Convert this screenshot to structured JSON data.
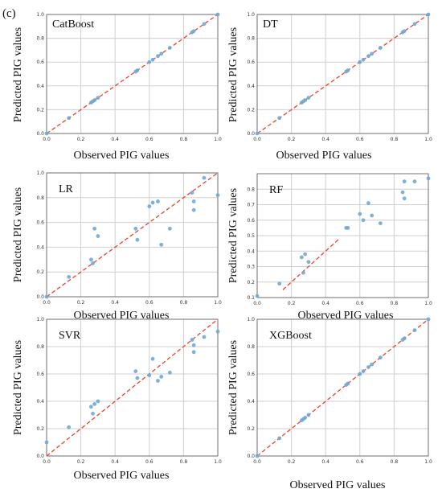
{
  "figure": {
    "panel_label": "(c)"
  },
  "chart_data": [
    {
      "type": "scatter",
      "title": "CatBoost",
      "xlabel": "Observed PIG values",
      "ylabel": "Predicted PIG values",
      "xlim": [
        0,
        1
      ],
      "ylim": [
        0,
        1
      ],
      "xticks": [
        "0.0",
        "0.2",
        "0.4",
        "0.6",
        "0.8",
        "1.0"
      ],
      "yticks": [
        "0.0",
        "0.2",
        "0.4",
        "0.6",
        "0.8",
        "1.0"
      ],
      "grid": true,
      "reference_line": {
        "style": "dashed",
        "color": "#e8432b",
        "from": [
          0,
          0
        ],
        "to": [
          1,
          1
        ]
      },
      "point_color": "#6fa8d4",
      "points": [
        [
          0.0,
          0.0
        ],
        [
          0.13,
          0.13
        ],
        [
          0.26,
          0.26
        ],
        [
          0.27,
          0.27
        ],
        [
          0.28,
          0.28
        ],
        [
          0.3,
          0.3
        ],
        [
          0.52,
          0.52
        ],
        [
          0.53,
          0.53
        ],
        [
          0.6,
          0.6
        ],
        [
          0.62,
          0.62
        ],
        [
          0.65,
          0.65
        ],
        [
          0.67,
          0.67
        ],
        [
          0.72,
          0.72
        ],
        [
          0.85,
          0.85
        ],
        [
          0.86,
          0.86
        ],
        [
          0.92,
          0.92
        ],
        [
          1.0,
          1.0
        ]
      ]
    },
    {
      "type": "scatter",
      "title": "DT",
      "xlabel": "Observed PIG values",
      "ylabel": "Predicted PIG values",
      "xlim": [
        0,
        1
      ],
      "ylim": [
        0,
        1
      ],
      "xticks": [
        "0.0",
        "0.2",
        "0.4",
        "0.6",
        "0.8",
        "1.0"
      ],
      "yticks": [
        "0.0",
        "0.2",
        "0.4",
        "0.6",
        "0.8",
        "1.0"
      ],
      "grid": true,
      "reference_line": {
        "style": "dashed",
        "color": "#e8432b",
        "from": [
          0,
          0
        ],
        "to": [
          1,
          1
        ]
      },
      "point_color": "#6fa8d4",
      "points": [
        [
          0.0,
          0.0
        ],
        [
          0.13,
          0.13
        ],
        [
          0.26,
          0.26
        ],
        [
          0.27,
          0.27
        ],
        [
          0.28,
          0.28
        ],
        [
          0.3,
          0.3
        ],
        [
          0.52,
          0.52
        ],
        [
          0.53,
          0.53
        ],
        [
          0.6,
          0.6
        ],
        [
          0.62,
          0.62
        ],
        [
          0.65,
          0.65
        ],
        [
          0.67,
          0.67
        ],
        [
          0.72,
          0.72
        ],
        [
          0.85,
          0.85
        ],
        [
          0.86,
          0.86
        ],
        [
          0.92,
          0.92
        ],
        [
          1.0,
          1.0
        ]
      ]
    },
    {
      "type": "scatter",
      "title": "LR",
      "xlabel": "Observed PIG values",
      "ylabel": "Predicted PIG values",
      "xlim": [
        0,
        1
      ],
      "ylim": [
        0,
        1
      ],
      "xticks": [
        "0.0",
        "0.2",
        "0.4",
        "0.6",
        "0.8",
        "1.0"
      ],
      "yticks": [
        "0.0",
        "0.2",
        "0.4",
        "0.6",
        "0.8",
        "1.0"
      ],
      "grid": true,
      "reference_line": {
        "style": "dashed",
        "color": "#e8432b",
        "from": [
          0,
          0
        ],
        "to": [
          1,
          1
        ]
      },
      "point_color": "#6fa8d4",
      "points": [
        [
          0.0,
          0.0
        ],
        [
          0.13,
          0.16
        ],
        [
          0.26,
          0.3
        ],
        [
          0.27,
          0.27
        ],
        [
          0.28,
          0.55
        ],
        [
          0.3,
          0.49
        ],
        [
          0.52,
          0.55
        ],
        [
          0.53,
          0.46
        ],
        [
          0.6,
          0.73
        ],
        [
          0.62,
          0.76
        ],
        [
          0.65,
          0.77
        ],
        [
          0.67,
          0.42
        ],
        [
          0.72,
          0.55
        ],
        [
          0.85,
          0.84
        ],
        [
          0.86,
          0.77
        ],
        [
          0.86,
          0.7
        ],
        [
          0.92,
          0.96
        ],
        [
          1.0,
          0.82
        ]
      ]
    },
    {
      "type": "scatter",
      "title": "RF",
      "xlabel": "Observed PIG values",
      "ylabel": "Predicted PIG values",
      "xlim": [
        0,
        1
      ],
      "ylim": [
        0.1,
        0.9
      ],
      "xticks": [
        "0.0",
        "0.2",
        "0.4",
        "0.6",
        "0.8",
        "1.0"
      ],
      "yticks": [
        "0.1",
        "0.2",
        "0.3",
        "0.4",
        "0.5",
        "0.6",
        "0.7",
        "0.8"
      ],
      "grid": true,
      "reference_line": {
        "style": "dashed",
        "color": "#e8432b",
        "from": [
          0.15,
          0.15
        ],
        "to": [
          0.48,
          0.48
        ]
      },
      "point_color": "#6fa8d4",
      "points": [
        [
          0.0,
          0.11
        ],
        [
          0.13,
          0.19
        ],
        [
          0.26,
          0.36
        ],
        [
          0.27,
          0.26
        ],
        [
          0.28,
          0.38
        ],
        [
          0.3,
          0.33
        ],
        [
          0.52,
          0.55
        ],
        [
          0.53,
          0.55
        ],
        [
          0.6,
          0.64
        ],
        [
          0.62,
          0.6
        ],
        [
          0.65,
          0.71
        ],
        [
          0.67,
          0.63
        ],
        [
          0.72,
          0.58
        ],
        [
          0.85,
          0.78
        ],
        [
          0.86,
          0.85
        ],
        [
          0.86,
          0.74
        ],
        [
          0.92,
          0.85
        ],
        [
          1.0,
          0.87
        ]
      ]
    },
    {
      "type": "scatter",
      "title": "SVR",
      "xlabel": "Observed PIG values",
      "ylabel": "Predicted PIG values",
      "xlim": [
        0,
        1
      ],
      "ylim": [
        0,
        1
      ],
      "xticks": [
        "0.0",
        "0.2",
        "0.4",
        "0.6",
        "0.8",
        "1.0"
      ],
      "yticks": [
        "0.0",
        "0.2",
        "0.4",
        "0.6",
        "0.8",
        "1.0"
      ],
      "grid": true,
      "reference_line": {
        "style": "dashed",
        "color": "#e8432b",
        "from": [
          0,
          0
        ],
        "to": [
          1,
          1
        ]
      },
      "point_color": "#6fa8d4",
      "points": [
        [
          0.0,
          0.1
        ],
        [
          0.13,
          0.21
        ],
        [
          0.26,
          0.36
        ],
        [
          0.27,
          0.31
        ],
        [
          0.28,
          0.38
        ],
        [
          0.3,
          0.4
        ],
        [
          0.52,
          0.62
        ],
        [
          0.53,
          0.57
        ],
        [
          0.6,
          0.59
        ],
        [
          0.62,
          0.71
        ],
        [
          0.65,
          0.55
        ],
        [
          0.67,
          0.58
        ],
        [
          0.72,
          0.61
        ],
        [
          0.85,
          0.85
        ],
        [
          0.86,
          0.81
        ],
        [
          0.86,
          0.76
        ],
        [
          0.92,
          0.87
        ],
        [
          1.0,
          0.91
        ]
      ]
    },
    {
      "type": "scatter",
      "title": "XGBoost",
      "xlabel": "Observed PIG values",
      "ylabel": "Predicted PIG values",
      "xlim": [
        0,
        1
      ],
      "ylim": [
        0,
        1
      ],
      "xticks": [
        "0.0",
        "0.2",
        "0.4",
        "0.6",
        "0.8",
        "1.0"
      ],
      "yticks": [
        "0.0",
        "0.2",
        "0.4",
        "0.6",
        "0.8",
        "1.0"
      ],
      "grid": true,
      "reference_line": {
        "style": "dashed",
        "color": "#e8432b",
        "from": [
          0,
          0
        ],
        "to": [
          1,
          1
        ]
      },
      "point_color": "#6fa8d4",
      "points": [
        [
          0.0,
          0.0
        ],
        [
          0.13,
          0.13
        ],
        [
          0.26,
          0.26
        ],
        [
          0.27,
          0.27
        ],
        [
          0.28,
          0.28
        ],
        [
          0.3,
          0.3
        ],
        [
          0.52,
          0.52
        ],
        [
          0.53,
          0.53
        ],
        [
          0.6,
          0.6
        ],
        [
          0.62,
          0.62
        ],
        [
          0.65,
          0.65
        ],
        [
          0.67,
          0.67
        ],
        [
          0.72,
          0.72
        ],
        [
          0.85,
          0.85
        ],
        [
          0.86,
          0.86
        ],
        [
          0.92,
          0.92
        ],
        [
          1.0,
          1.0
        ]
      ]
    }
  ]
}
